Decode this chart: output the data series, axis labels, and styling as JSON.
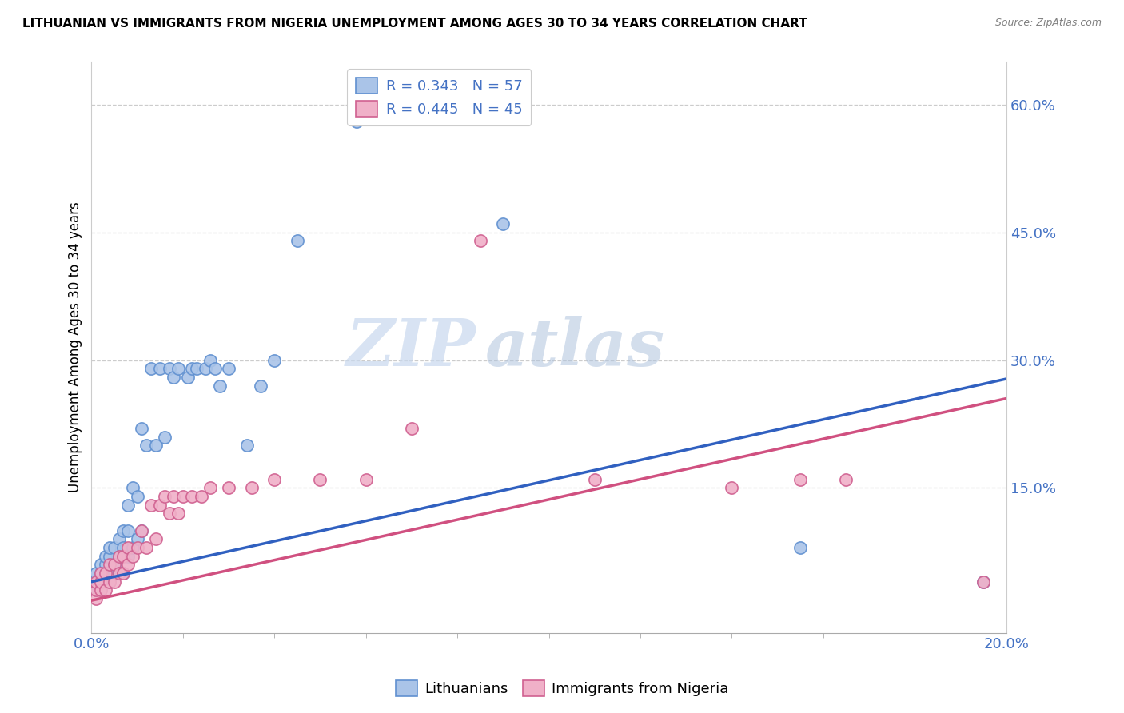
{
  "title": "LITHUANIAN VS IMMIGRANTS FROM NIGERIA UNEMPLOYMENT AMONG AGES 30 TO 34 YEARS CORRELATION CHART",
  "source": "Source: ZipAtlas.com",
  "ylabel": "Unemployment Among Ages 30 to 34 years",
  "xlim": [
    0.0,
    0.2
  ],
  "ylim": [
    -0.02,
    0.65
  ],
  "xtick_labels": [
    "0.0%",
    "20.0%"
  ],
  "ytick_labels": [
    "15.0%",
    "30.0%",
    "45.0%",
    "60.0%"
  ],
  "ytick_values": [
    0.15,
    0.3,
    0.45,
    0.6
  ],
  "legend1_R": "0.343",
  "legend1_N": "57",
  "legend2_R": "0.445",
  "legend2_N": "45",
  "legend_label1": "Lithuanians",
  "legend_label2": "Immigrants from Nigeria",
  "color_blue_face": "#aac4e8",
  "color_pink_face": "#f0b0c8",
  "color_blue_edge": "#6090d0",
  "color_pink_edge": "#d06090",
  "color_blue_line": "#3060c0",
  "color_pink_line": "#d05080",
  "color_text_blue": "#4472c4",
  "watermark_zip": "ZIP",
  "watermark_atlas": "atlas",
  "blue_line_y0": 0.04,
  "blue_line_y1": 0.278,
  "pink_line_y0": 0.018,
  "pink_line_y1": 0.255,
  "blue_x": [
    0.001,
    0.001,
    0.001,
    0.002,
    0.002,
    0.002,
    0.002,
    0.003,
    0.003,
    0.003,
    0.003,
    0.004,
    0.004,
    0.004,
    0.004,
    0.005,
    0.005,
    0.005,
    0.006,
    0.006,
    0.006,
    0.007,
    0.007,
    0.007,
    0.008,
    0.008,
    0.008,
    0.009,
    0.009,
    0.01,
    0.01,
    0.011,
    0.011,
    0.012,
    0.013,
    0.014,
    0.015,
    0.016,
    0.017,
    0.018,
    0.019,
    0.021,
    0.022,
    0.023,
    0.025,
    0.026,
    0.027,
    0.028,
    0.03,
    0.034,
    0.037,
    0.04,
    0.045,
    0.058,
    0.09,
    0.155,
    0.195
  ],
  "blue_y": [
    0.03,
    0.04,
    0.05,
    0.03,
    0.04,
    0.05,
    0.06,
    0.04,
    0.05,
    0.06,
    0.07,
    0.04,
    0.05,
    0.07,
    0.08,
    0.05,
    0.06,
    0.08,
    0.05,
    0.07,
    0.09,
    0.05,
    0.08,
    0.1,
    0.07,
    0.1,
    0.13,
    0.08,
    0.15,
    0.09,
    0.14,
    0.1,
    0.22,
    0.2,
    0.29,
    0.2,
    0.29,
    0.21,
    0.29,
    0.28,
    0.29,
    0.28,
    0.29,
    0.29,
    0.29,
    0.3,
    0.29,
    0.27,
    0.29,
    0.2,
    0.27,
    0.3,
    0.44,
    0.58,
    0.46,
    0.08,
    0.04
  ],
  "pink_x": [
    0.001,
    0.001,
    0.001,
    0.002,
    0.002,
    0.002,
    0.003,
    0.003,
    0.004,
    0.004,
    0.005,
    0.005,
    0.006,
    0.006,
    0.007,
    0.007,
    0.008,
    0.008,
    0.009,
    0.01,
    0.011,
    0.012,
    0.013,
    0.014,
    0.015,
    0.016,
    0.017,
    0.018,
    0.019,
    0.02,
    0.022,
    0.024,
    0.026,
    0.03,
    0.035,
    0.04,
    0.05,
    0.06,
    0.07,
    0.085,
    0.11,
    0.14,
    0.155,
    0.165,
    0.195
  ],
  "pink_y": [
    0.02,
    0.03,
    0.04,
    0.03,
    0.04,
    0.05,
    0.03,
    0.05,
    0.04,
    0.06,
    0.04,
    0.06,
    0.05,
    0.07,
    0.05,
    0.07,
    0.06,
    0.08,
    0.07,
    0.08,
    0.1,
    0.08,
    0.13,
    0.09,
    0.13,
    0.14,
    0.12,
    0.14,
    0.12,
    0.14,
    0.14,
    0.14,
    0.15,
    0.15,
    0.15,
    0.16,
    0.16,
    0.16,
    0.22,
    0.44,
    0.16,
    0.15,
    0.16,
    0.16,
    0.04
  ]
}
